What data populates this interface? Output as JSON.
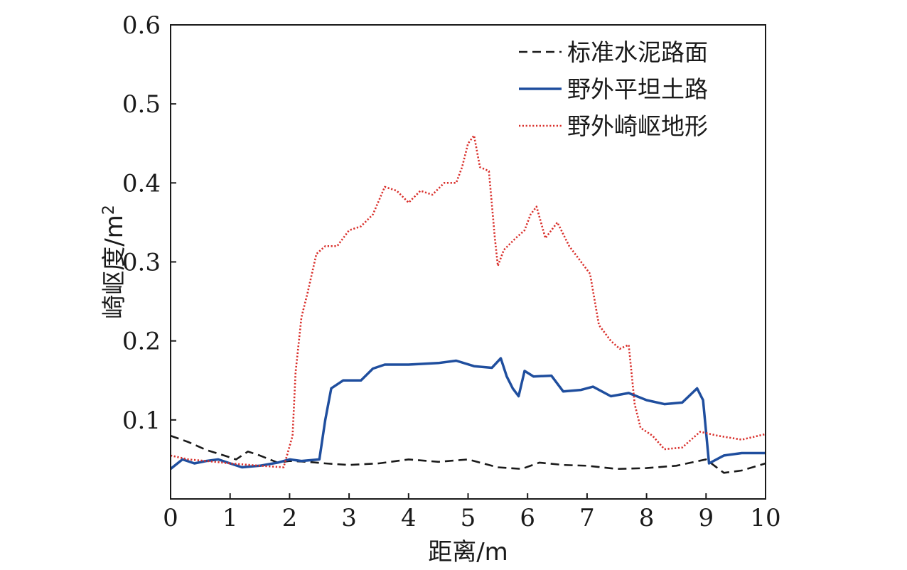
{
  "chart_data": {
    "type": "line",
    "xlabel": "距离/m",
    "ylabel_main": "崎岖度/m",
    "ylabel_sup": "2",
    "xlim": [
      0,
      10
    ],
    "ylim": [
      0,
      0.6
    ],
    "xticks": [
      "0",
      "1",
      "2",
      "3",
      "4",
      "5",
      "6",
      "7",
      "8",
      "9",
      "10"
    ],
    "yticks": [
      "0.1",
      "0.2",
      "0.3",
      "0.4",
      "0.5",
      "0.6"
    ],
    "grid": false,
    "legend_position": "top-right",
    "series": [
      {
        "name": "标准水泥路面",
        "color": "#1a1a1a",
        "dash": "dashed",
        "x": [
          0,
          0.3,
          0.6,
          0.9,
          1.1,
          1.3,
          1.5,
          1.8,
          2.0,
          2.3,
          2.6,
          3.0,
          3.5,
          4.0,
          4.5,
          5.0,
          5.5,
          5.9,
          6.2,
          6.6,
          7.0,
          7.5,
          8.0,
          8.5,
          9.0,
          9.3,
          9.6,
          10.0
        ],
        "y": [
          0.08,
          0.072,
          0.062,
          0.055,
          0.05,
          0.06,
          0.055,
          0.046,
          0.048,
          0.047,
          0.045,
          0.043,
          0.045,
          0.05,
          0.047,
          0.05,
          0.04,
          0.038,
          0.046,
          0.043,
          0.042,
          0.038,
          0.039,
          0.042,
          0.05,
          0.033,
          0.036,
          0.045
        ]
      },
      {
        "name": "野外平坦土路",
        "color": "#1f4e9e",
        "dash": "solid",
        "x": [
          0,
          0.2,
          0.4,
          0.6,
          0.8,
          1.0,
          1.2,
          1.5,
          1.8,
          2.0,
          2.2,
          2.5,
          2.6,
          2.7,
          2.9,
          3.2,
          3.4,
          3.6,
          4.0,
          4.5,
          4.8,
          5.1,
          5.4,
          5.55,
          5.65,
          5.75,
          5.85,
          5.95,
          6.1,
          6.4,
          6.6,
          6.9,
          7.1,
          7.4,
          7.7,
          8.0,
          8.3,
          8.6,
          8.85,
          8.95,
          9.05,
          9.3,
          9.6,
          10.0
        ],
        "y": [
          0.038,
          0.05,
          0.045,
          0.048,
          0.05,
          0.045,
          0.04,
          0.042,
          0.046,
          0.05,
          0.048,
          0.05,
          0.1,
          0.14,
          0.15,
          0.15,
          0.165,
          0.17,
          0.17,
          0.172,
          0.175,
          0.168,
          0.166,
          0.178,
          0.155,
          0.14,
          0.13,
          0.162,
          0.155,
          0.156,
          0.136,
          0.138,
          0.142,
          0.13,
          0.134,
          0.125,
          0.12,
          0.122,
          0.14,
          0.125,
          0.045,
          0.055,
          0.058,
          0.058
        ]
      },
      {
        "name": "野外崎岖地形",
        "color": "#d9302c",
        "dash": "dotted",
        "x": [
          0,
          0.3,
          0.6,
          1.0,
          1.5,
          1.9,
          2.05,
          2.1,
          2.2,
          2.3,
          2.45,
          2.6,
          2.8,
          3.0,
          3.2,
          3.4,
          3.6,
          3.8,
          4.0,
          4.2,
          4.4,
          4.6,
          4.8,
          4.9,
          5.0,
          5.1,
          5.2,
          5.35,
          5.45,
          5.5,
          5.6,
          5.8,
          5.95,
          6.05,
          6.15,
          6.3,
          6.5,
          6.7,
          6.9,
          7.05,
          7.2,
          7.4,
          7.55,
          7.7,
          7.8,
          7.9,
          8.1,
          8.3,
          8.6,
          8.9,
          9.2,
          9.6,
          10.0
        ],
        "y": [
          0.055,
          0.05,
          0.048,
          0.045,
          0.042,
          0.04,
          0.08,
          0.16,
          0.23,
          0.26,
          0.31,
          0.32,
          0.32,
          0.34,
          0.345,
          0.36,
          0.395,
          0.39,
          0.375,
          0.39,
          0.385,
          0.4,
          0.4,
          0.42,
          0.45,
          0.46,
          0.42,
          0.415,
          0.33,
          0.295,
          0.315,
          0.33,
          0.34,
          0.36,
          0.37,
          0.33,
          0.35,
          0.32,
          0.3,
          0.285,
          0.22,
          0.2,
          0.19,
          0.195,
          0.12,
          0.09,
          0.08,
          0.063,
          0.065,
          0.085,
          0.08,
          0.075,
          0.082
        ]
      }
    ]
  }
}
